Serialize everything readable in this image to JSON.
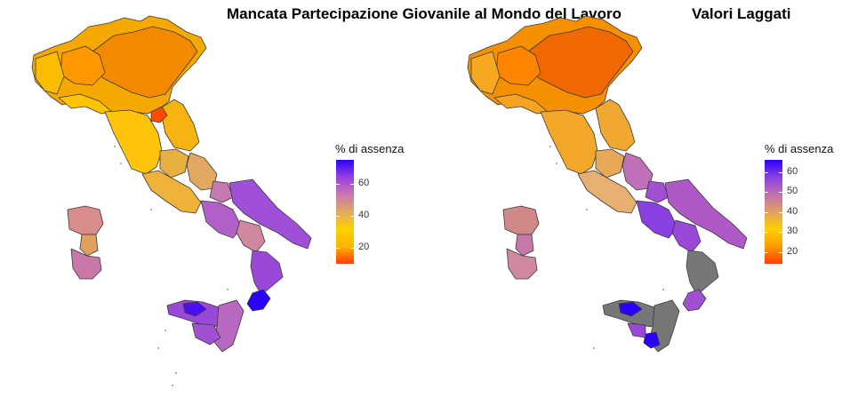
{
  "panels": [
    {
      "title": "Mancata Partecipazione Giovanile al Mondo del Lavoro",
      "legend": {
        "title": "% di assenza",
        "ticks": [
          "20",
          "40",
          "60"
        ],
        "range": [
          10,
          75
        ],
        "colors": [
          "#ff3c00",
          "#ffb400",
          "#ffd200",
          "#e0a860",
          "#c878b0",
          "#9a40e0",
          "#2a00ff"
        ]
      }
    },
    {
      "title": "Valori Laggati",
      "legend": {
        "title": "% di assenza",
        "ticks": [
          "20",
          "30",
          "40",
          "50",
          "60"
        ],
        "range": [
          14,
          66
        ],
        "colors": [
          "#ff3c00",
          "#ff9a00",
          "#ffd000",
          "#e0a060",
          "#c070b0",
          "#8a40e0",
          "#2a00ff"
        ]
      }
    }
  ],
  "colors": {
    "border": "#3a3a3a",
    "no_data": "#777777"
  }
}
